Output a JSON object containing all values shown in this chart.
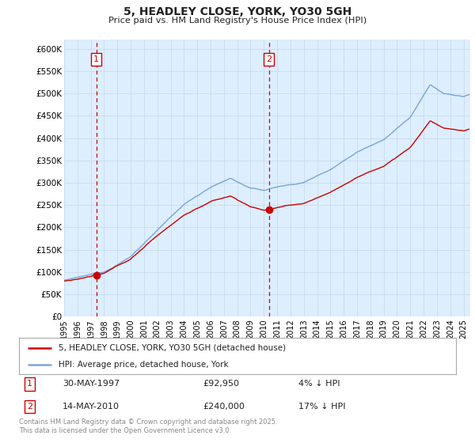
{
  "title": "5, HEADLEY CLOSE, YORK, YO30 5GH",
  "subtitle": "Price paid vs. HM Land Registry's House Price Index (HPI)",
  "legend_entries": [
    "5, HEADLEY CLOSE, YORK, YO30 5GH (detached house)",
    "HPI: Average price, detached house, York"
  ],
  "annotation1_label": "1",
  "annotation1_date": "30-MAY-1997",
  "annotation1_price": "£92,950",
  "annotation1_hpi": "4% ↓ HPI",
  "annotation2_label": "2",
  "annotation2_date": "14-MAY-2010",
  "annotation2_price": "£240,000",
  "annotation2_hpi": "17% ↓ HPI",
  "footer": "Contains HM Land Registry data © Crown copyright and database right 2025.\nThis data is licensed under the Open Government Licence v3.0.",
  "line_color_red": "#cc0000",
  "line_color_blue": "#6699cc",
  "grid_color": "#ccddee",
  "bg_color": "#ddeeff",
  "outer_bg": "#ffffff",
  "ylim": [
    0,
    620000
  ],
  "yticks": [
    0,
    50000,
    100000,
    150000,
    200000,
    250000,
    300000,
    350000,
    400000,
    450000,
    500000,
    550000,
    600000
  ],
  "ytick_labels": [
    "£0",
    "£50K",
    "£100K",
    "£150K",
    "£200K",
    "£250K",
    "£300K",
    "£350K",
    "£400K",
    "£450K",
    "£500K",
    "£550K",
    "£600K"
  ],
  "purchase1_x": 1997.41,
  "purchase1_y": 92950,
  "purchase2_x": 2010.37,
  "purchase2_y": 240000,
  "vline1_x": 1997.41,
  "vline2_x": 2010.37,
  "xmin": 1995,
  "xmax": 2025.5
}
